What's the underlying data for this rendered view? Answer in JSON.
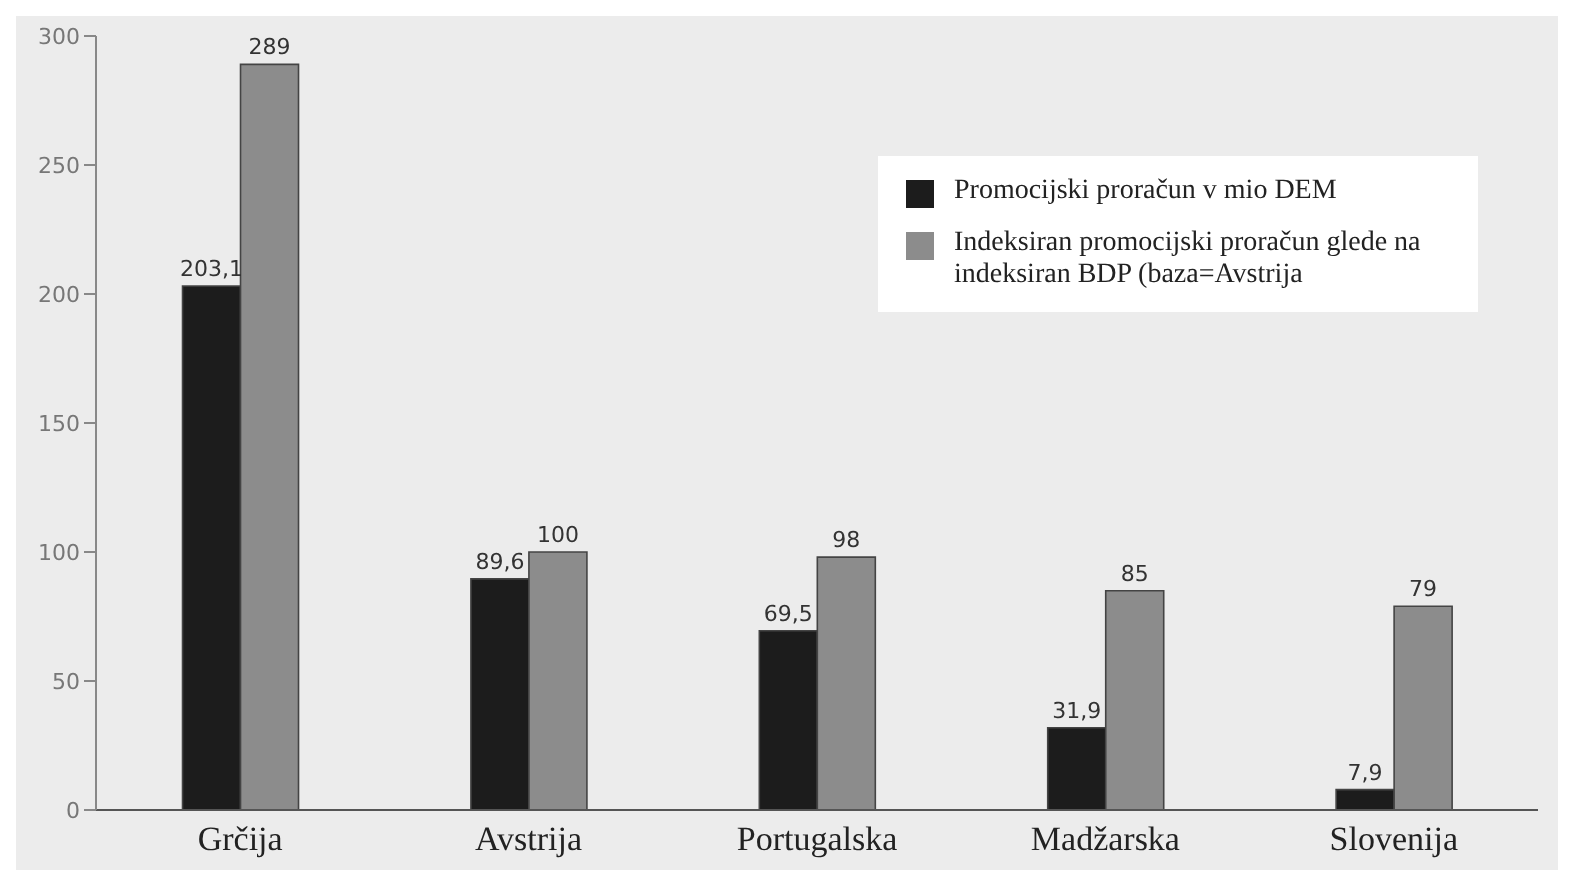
{
  "chart_data": {
    "type": "bar",
    "categories": [
      "Grčija",
      "Avstrija",
      "Portugalska",
      "Madžarska",
      "Slovenija"
    ],
    "series": [
      {
        "name": "Promocijski proračun v mio DEM",
        "color": "#1c1c1c",
        "values": [
          203.1,
          89.6,
          69.5,
          31.9,
          7.9
        ],
        "value_labels": [
          "203,1",
          "89,6",
          "69,5",
          "31,9",
          "7,9"
        ]
      },
      {
        "name": "Indeksiran promocijski proračun glede na indeksiran BDP (baza=Avstrija",
        "color": "#8c8c8c",
        "values": [
          289,
          100,
          98,
          85,
          79
        ],
        "value_labels": [
          "289",
          "100",
          "98",
          "85",
          "79"
        ]
      }
    ],
    "ylim": [
      0,
      300
    ],
    "yticks": [
      0,
      50,
      100,
      150,
      200,
      250,
      300
    ],
    "legend": "top right"
  }
}
